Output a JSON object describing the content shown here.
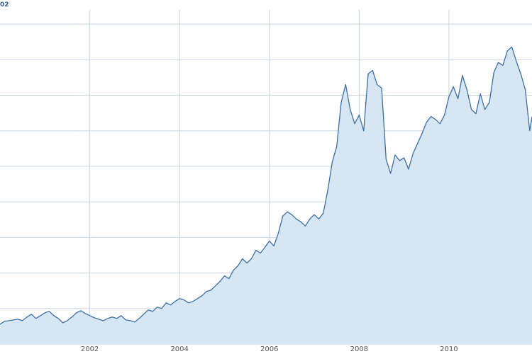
{
  "chart_data": {
    "type": "area",
    "title": "",
    "xlabel": "",
    "ylabel": "",
    "corner_label": "02",
    "grid": true,
    "xlim": [
      2000.0,
      2011.85
    ],
    "ylim": [
      0,
      470
    ],
    "x_ticks": [
      2002,
      2004,
      2006,
      2008,
      2010
    ],
    "x_tick_labels": [
      "2002",
      "2004",
      "2006",
      "2008",
      "2010"
    ],
    "y_ticks": [
      50,
      100,
      150,
      200,
      250,
      300,
      350,
      400,
      450
    ],
    "colors": {
      "line": "#3d6fa6",
      "fill": "#d6e6f2",
      "grid": "#c8d4df"
    },
    "series": [
      {
        "x": [
          2000.0,
          2000.1,
          2000.2,
          2000.3,
          2000.4,
          2000.5,
          2000.6,
          2000.7,
          2000.8,
          2000.9,
          2001.0,
          2001.1,
          2001.2,
          2001.3,
          2001.4,
          2001.5,
          2001.6,
          2001.7,
          2001.8,
          2001.9,
          2002.0,
          2002.1,
          2002.2,
          2002.3,
          2002.4,
          2002.5,
          2002.6,
          2002.7,
          2002.8,
          2002.9,
          2003.0,
          2003.1,
          2003.2,
          2003.3,
          2003.4,
          2003.5,
          2003.6,
          2003.7,
          2003.8,
          2003.9,
          2004.0,
          2004.1,
          2004.2,
          2004.3,
          2004.4,
          2004.5,
          2004.6,
          2004.7,
          2004.8,
          2004.9,
          2005.0,
          2005.1,
          2005.2,
          2005.3,
          2005.4,
          2005.5,
          2005.6,
          2005.7,
          2005.8,
          2005.9,
          2006.0,
          2006.1,
          2006.2,
          2006.3,
          2006.4,
          2006.5,
          2006.6,
          2006.7,
          2006.8,
          2006.9,
          2007.0,
          2007.1,
          2007.2,
          2007.3,
          2007.4,
          2007.5,
          2007.6,
          2007.7,
          2007.8,
          2007.9,
          2008.0,
          2008.1,
          2008.2,
          2008.3,
          2008.4,
          2008.5,
          2008.6,
          2008.7,
          2008.8,
          2008.9,
          2009.0,
          2009.1,
          2009.2,
          2009.3,
          2009.4,
          2009.5,
          2009.6,
          2009.7,
          2009.8,
          2009.9,
          2010.0,
          2010.1,
          2010.2,
          2010.3,
          2010.4,
          2010.5,
          2010.6,
          2010.7,
          2010.8,
          2010.9,
          2011.0,
          2011.1,
          2011.2,
          2011.3,
          2011.4,
          2011.5,
          2011.6,
          2011.7,
          2011.8,
          2011.85
        ],
        "y": [
          28,
          32,
          33,
          34,
          35,
          33,
          38,
          42,
          36,
          40,
          44,
          46,
          40,
          36,
          30,
          33,
          38,
          44,
          47,
          43,
          40,
          37,
          35,
          33,
          36,
          38,
          36,
          40,
          34,
          33,
          31,
          36,
          42,
          48,
          46,
          52,
          50,
          58,
          55,
          60,
          64,
          62,
          58,
          60,
          64,
          68,
          74,
          76,
          82,
          88,
          96,
          92,
          104,
          110,
          120,
          114,
          120,
          132,
          128,
          136,
          145,
          138,
          156,
          180,
          186,
          182,
          176,
          172,
          166,
          176,
          182,
          176,
          184,
          216,
          256,
          278,
          340,
          365,
          330,
          310,
          322,
          300,
          380,
          385,
          365,
          360,
          260,
          240,
          266,
          258,
          262,
          246,
          268,
          282,
          296,
          312,
          320,
          316,
          310,
          322,
          348,
          362,
          345,
          378,
          358,
          330,
          324,
          352,
          330,
          340,
          382,
          396,
          392,
          412,
          418,
          398,
          380,
          358,
          300,
          320
        ]
      }
    ]
  }
}
